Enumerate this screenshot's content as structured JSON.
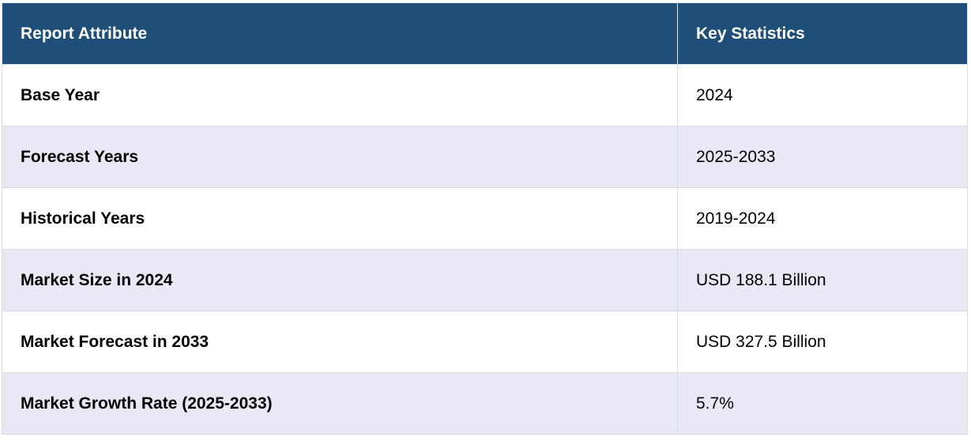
{
  "table": {
    "headers": [
      "Report Attribute",
      "Key Statistics"
    ],
    "rows": [
      {
        "attribute": "Base Year",
        "value": "2024"
      },
      {
        "attribute": "Forecast Years",
        "value": "2025-2033"
      },
      {
        "attribute": "Historical Years",
        "value": "2019-2024"
      },
      {
        "attribute": "Market Size in 2024",
        "value": "USD 188.1 Billion"
      },
      {
        "attribute": "Market Forecast in 2033",
        "value": "USD 327.5 Billion"
      },
      {
        "attribute": "Market Growth Rate (2025-2033)",
        "value": "5.7%"
      }
    ]
  },
  "colors": {
    "header_bg": "#1f4e79",
    "header_text": "#ffffff",
    "row_alt_bg": "#e8e9f5",
    "row_bg": "#ffffff",
    "border": "#d9dbe3"
  }
}
